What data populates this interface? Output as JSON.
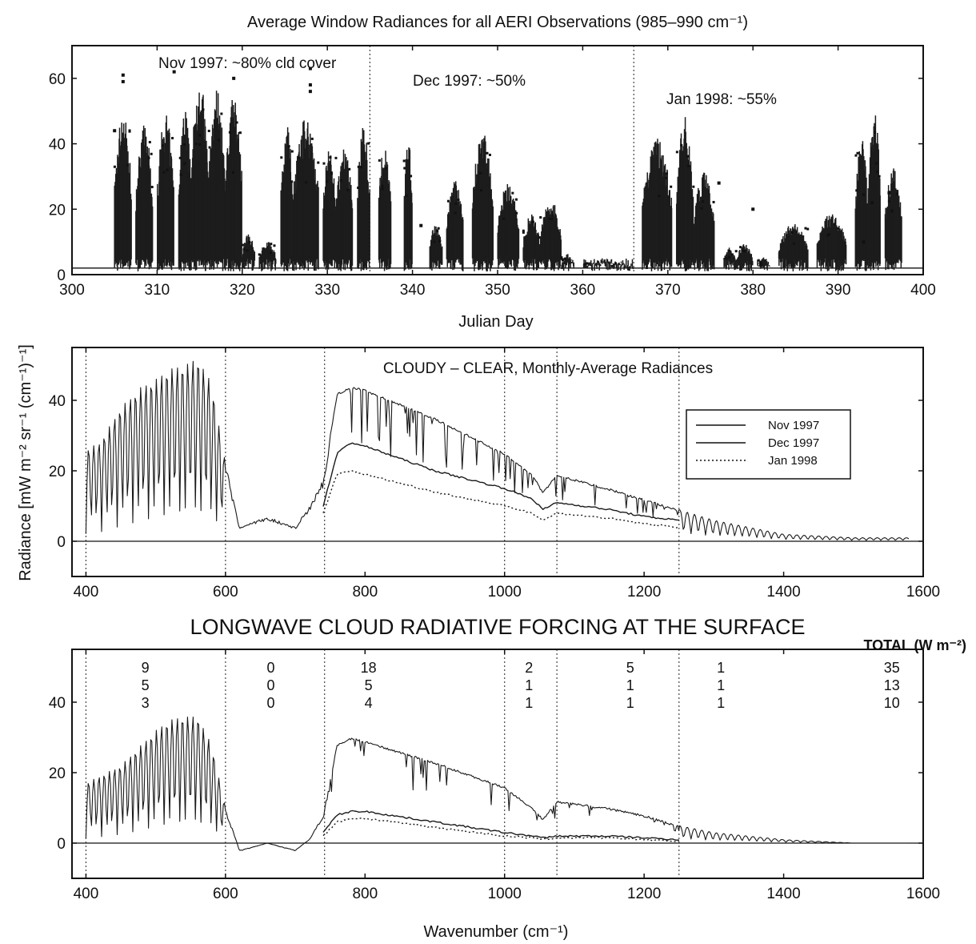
{
  "chart_data": [
    {
      "type": "scatter",
      "title": "Average Window Radiances for all AERI Observations (985–990 cm⁻¹)",
      "xlabel": "Julian Day",
      "ylabel": "",
      "xlim": [
        300,
        400
      ],
      "ylim": [
        0,
        70
      ],
      "xticks": [
        300,
        310,
        320,
        330,
        340,
        350,
        360,
        370,
        380,
        390,
        400
      ],
      "yticks": [
        0,
        20,
        40,
        60
      ],
      "grid": false,
      "month_boundaries": [
        335,
        366
      ],
      "clear_threshold": 2,
      "annotations": [
        "Nov 1997: ~80% cld cover",
        "Dec 1997: ~50%",
        "Jan 1998: ~55%"
      ],
      "clusters": [
        {
          "x": [
            305.0,
            307.0
          ],
          "peak": 48
        },
        {
          "x": [
            307.5,
            309.5
          ],
          "peak": 44
        },
        {
          "x": [
            310.0,
            312.0
          ],
          "peak": 47
        },
        {
          "x": [
            312.5,
            314.0
          ],
          "peak": 50
        },
        {
          "x": [
            314.0,
            316.0
          ],
          "peak": 58
        },
        {
          "x": [
            316.0,
            318.0
          ],
          "peak": 55
        },
        {
          "x": [
            318.0,
            320.0
          ],
          "peak": 52
        },
        {
          "x": [
            320.0,
            321.5
          ],
          "peak": 12
        },
        {
          "x": [
            322.0,
            324.0
          ],
          "peak": 10
        },
        {
          "x": [
            324.5,
            326.0
          ],
          "peak": 44
        },
        {
          "x": [
            326.0,
            329.0
          ],
          "peak": 46
        },
        {
          "x": [
            329.5,
            331.0
          ],
          "peak": 38
        },
        {
          "x": [
            331.0,
            333.0
          ],
          "peak": 38
        },
        {
          "x": [
            333.5,
            335.0
          ],
          "peak": 44
        },
        {
          "x": [
            336.0,
            337.5
          ],
          "peak": 39
        },
        {
          "x": [
            339.0,
            340.0
          ],
          "peak": 40
        },
        {
          "x": [
            342.0,
            343.5
          ],
          "peak": 15
        },
        {
          "x": [
            344.0,
            346.0
          ],
          "peak": 28
        },
        {
          "x": [
            347.0,
            349.5
          ],
          "peak": 42
        },
        {
          "x": [
            350.0,
            352.5
          ],
          "peak": 27
        },
        {
          "x": [
            353.0,
            355.0
          ],
          "peak": 18
        },
        {
          "x": [
            355.0,
            357.5
          ],
          "peak": 22
        },
        {
          "x": [
            357.5,
            359.0
          ],
          "peak": 6
        },
        {
          "x": [
            360.0,
            366.0
          ],
          "peak": 4
        },
        {
          "x": [
            367.0,
            370.5
          ],
          "peak": 40
        },
        {
          "x": [
            371.0,
            373.0
          ],
          "peak": 46
        },
        {
          "x": [
            373.0,
            375.5
          ],
          "peak": 30
        },
        {
          "x": [
            376.5,
            378.0
          ],
          "peak": 8
        },
        {
          "x": [
            378.0,
            380.0
          ],
          "peak": 9
        },
        {
          "x": [
            380.5,
            382.0
          ],
          "peak": 5
        },
        {
          "x": [
            383.0,
            386.5
          ],
          "peak": 15
        },
        {
          "x": [
            387.5,
            391.0
          ],
          "peak": 18
        },
        {
          "x": [
            392.0,
            393.5
          ],
          "peak": 40
        },
        {
          "x": [
            393.5,
            395.0
          ],
          "peak": 48
        },
        {
          "x": [
            395.5,
            397.5
          ],
          "peak": 32
        }
      ],
      "isolated_points": [
        {
          "x": 306,
          "y": 61
        },
        {
          "x": 306,
          "y": 59
        },
        {
          "x": 312,
          "y": 62
        },
        {
          "x": 319,
          "y": 60
        },
        {
          "x": 328,
          "y": 63
        },
        {
          "x": 328,
          "y": 58
        },
        {
          "x": 328,
          "y": 56
        },
        {
          "x": 305,
          "y": 44
        },
        {
          "x": 341,
          "y": 15
        },
        {
          "x": 376,
          "y": 28
        },
        {
          "x": 380,
          "y": 20
        },
        {
          "x": 396,
          "y": 25
        },
        {
          "x": 394,
          "y": 22
        },
        {
          "x": 393,
          "y": 10
        }
      ]
    },
    {
      "type": "line",
      "title": "CLOUDY – CLEAR, Monthly-Average Radiances",
      "xlabel": "",
      "ylabel": "Radiance [mW m⁻² sr⁻¹ (cm⁻¹)⁻¹]",
      "xlim": [
        380,
        1600
      ],
      "ylim": [
        -10,
        55
      ],
      "xticks": [
        400,
        600,
        800,
        1000,
        1200,
        1400,
        1600
      ],
      "yticks": [
        0,
        20,
        40
      ],
      "grid": false,
      "band_boundaries": [
        400,
        600,
        742,
        1000,
        1075,
        1250
      ],
      "legend_position": "right",
      "series": [
        {
          "name": "Nov 1997",
          "style": "solid",
          "x": [
            400,
            420,
            450,
            480,
            500,
            520,
            540,
            560,
            580,
            600,
            620,
            660,
            700,
            720,
            740,
            760,
            780,
            800,
            900,
            1000,
            1040,
            1055,
            1075,
            1150,
            1200,
            1250,
            1300,
            1350,
            1400,
            1500,
            1580
          ],
          "env": [
            26,
            28,
            38,
            44,
            46,
            49,
            50,
            52,
            45,
            22,
            4,
            7,
            4,
            10,
            18,
            42,
            44,
            43,
            35,
            25,
            19,
            14,
            19,
            15,
            12,
            9,
            6,
            4,
            2,
            1,
            1
          ]
        },
        {
          "name": "Dec 1997",
          "style": "solid",
          "x": [
            740,
            760,
            780,
            800,
            900,
            1000,
            1040,
            1055,
            1075,
            1150,
            1200,
            1250
          ],
          "y": [
            10,
            25,
            28,
            27,
            20,
            15,
            12,
            9,
            11,
            9,
            7,
            6
          ]
        },
        {
          "name": "Jan 1998",
          "style": "dotted",
          "x": [
            740,
            760,
            780,
            800,
            900,
            1000,
            1040,
            1055,
            1075,
            1150,
            1200,
            1250
          ],
          "y": [
            8,
            19,
            20,
            19,
            14,
            10,
            8,
            6,
            8,
            6.5,
            5,
            4
          ]
        }
      ]
    },
    {
      "type": "line",
      "title": "LONGWAVE CLOUD RADIATIVE FORCING AT THE SURFACE",
      "xlabel": "Wavenumber (cm⁻¹)",
      "ylabel": "",
      "xlim": [
        380,
        1600
      ],
      "ylim": [
        -10,
        55
      ],
      "xticks": [
        400,
        600,
        800,
        1000,
        1200,
        1400,
        1600
      ],
      "yticks": [
        0,
        20,
        40
      ],
      "grid": false,
      "band_boundaries": [
        400,
        600,
        742,
        1000,
        1075,
        1250
      ],
      "total_label": "TOTAL (W m⁻²)",
      "forcing_table": {
        "columns_x": [
          485,
          665,
          805,
          1035,
          1180,
          1310,
          1555
        ],
        "rows": [
          [
            "9",
            "0",
            "18",
            "2",
            "5",
            "1",
            "35"
          ],
          [
            "5",
            "0",
            "5",
            "1",
            "1",
            "1",
            "13"
          ],
          [
            "3",
            "0",
            "4",
            "1",
            "1",
            "1",
            "10"
          ]
        ]
      },
      "series": [
        {
          "name": "Nov 1997",
          "style": "solid",
          "x": [
            400,
            420,
            450,
            480,
            500,
            520,
            540,
            560,
            580,
            600,
            620,
            660,
            700,
            720,
            740,
            760,
            780,
            800,
            900,
            1000,
            1040,
            1055,
            1075,
            1150,
            1200,
            1250,
            1300,
            1350,
            1400,
            1500,
            1580
          ],
          "env": [
            17,
            19,
            22,
            28,
            32,
            35,
            36,
            36,
            28,
            10,
            -2,
            0,
            -2,
            1,
            8,
            28,
            30,
            29,
            23,
            16,
            10,
            7,
            12,
            10,
            8,
            5,
            3,
            2,
            1,
            0,
            0
          ]
        },
        {
          "name": "Dec 1997",
          "style": "solid",
          "x": [
            740,
            760,
            780,
            800,
            900,
            1000,
            1040,
            1055,
            1075,
            1150,
            1200,
            1250
          ],
          "y": [
            3,
            8,
            9,
            9,
            6,
            3,
            2,
            1.5,
            2,
            2,
            1.5,
            1
          ]
        },
        {
          "name": "Jan 1998",
          "style": "dotted",
          "x": [
            740,
            760,
            780,
            800,
            900,
            1000,
            1040,
            1055,
            1075,
            1150,
            1200,
            1250
          ],
          "y": [
            2,
            6,
            7,
            7,
            4.5,
            2,
            1.5,
            1,
            1.5,
            1.5,
            1,
            0.5
          ]
        }
      ]
    }
  ]
}
